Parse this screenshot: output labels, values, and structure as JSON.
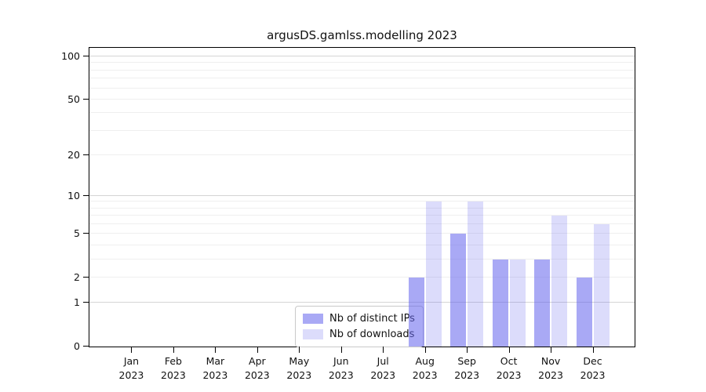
{
  "title": "argusDS.gamlss.modelling 2023",
  "chart_data": {
    "type": "bar",
    "title": "argusDS.gamlss.modelling 2023",
    "categories": [
      "Jan",
      "Feb",
      "Mar",
      "Apr",
      "May",
      "Jun",
      "Jul",
      "Aug",
      "Sep",
      "Oct",
      "Nov",
      "Dec"
    ],
    "tick_year": "2023",
    "series": [
      {
        "name": "Nb of distinct IPs",
        "color": "rgba(102,102,238,0.56)",
        "values": [
          0,
          0,
          0,
          0,
          0,
          0,
          0,
          2,
          5,
          3,
          3,
          2
        ]
      },
      {
        "name": "Nb of downloads",
        "color": "rgba(102,102,238,0.23)",
        "values": [
          0,
          0,
          0,
          0,
          0,
          0,
          0,
          9,
          9,
          3,
          7,
          6
        ]
      }
    ],
    "yscale": "log1p",
    "ylim": [
      0,
      115
    ],
    "yticks": [
      0,
      1,
      2,
      5,
      10,
      20,
      50,
      100
    ],
    "grid_major": [
      1,
      10,
      100
    ],
    "grid_minor": [
      2,
      3,
      4,
      5,
      6,
      7,
      8,
      9,
      20,
      30,
      40,
      50,
      60,
      70,
      80,
      90
    ],
    "legend_position": "lower center (inside plot)",
    "grid": "horizontal only",
    "colors": {
      "bar_ips": "rgba(102,102,238,0.56)",
      "bar_downloads": "rgba(102,102,238,0.23)",
      "grid_major": "#d4d4d4",
      "grid_minor": "#efefef",
      "spine": "#000000",
      "text": "#111111",
      "background": "#ffffff"
    }
  }
}
